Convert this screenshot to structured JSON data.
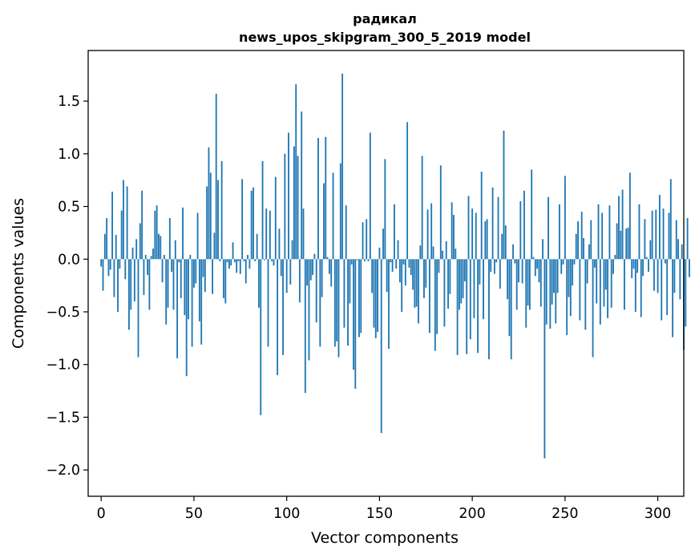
{
  "chart_data": {
    "type": "bar",
    "title": "радикал",
    "subtitle": "news_upos_skipgram_300_5_2019 model",
    "xlabel": "Vector components",
    "ylabel": "Components values",
    "xlim": [
      -7,
      314
    ],
    "ylim": [
      -2.25,
      1.98
    ],
    "xticks": [
      0,
      50,
      100,
      150,
      200,
      250,
      300
    ],
    "yticks": [
      -2.0,
      -1.5,
      -1.0,
      -0.5,
      0.0,
      0.5,
      1.0,
      1.5
    ],
    "ytick_labels": [
      "−2.0",
      "−1.5",
      "−1.0",
      "−0.5",
      "0.0",
      "0.5",
      "1.0",
      "1.5"
    ],
    "bar_color": "#1f77b4",
    "grid": false,
    "values": [
      -0.07,
      -0.3,
      0.24,
      0.39,
      -0.16,
      -0.1,
      0.64,
      -0.36,
      0.23,
      -0.5,
      -0.09,
      0.46,
      0.75,
      -0.19,
      0.69,
      -0.67,
      -0.48,
      0.11,
      -0.4,
      0.19,
      -0.93,
      0.34,
      0.65,
      -0.34,
      0.04,
      -0.15,
      -0.48,
      0.03,
      0.1,
      0.46,
      0.51,
      0.24,
      0.22,
      -0.22,
      0.04,
      -0.62,
      -0.46,
      0.39,
      -0.12,
      -0.48,
      0.18,
      -0.94,
      -0.03,
      -0.37,
      0.49,
      -0.53,
      -1.11,
      -0.57,
      0.04,
      -0.83,
      -0.27,
      -0.23,
      0.44,
      -0.59,
      -0.81,
      -0.17,
      -0.31,
      0.69,
      1.06,
      0.82,
      -0.33,
      0.25,
      1.57,
      0.75,
      -0.02,
      0.93,
      -0.37,
      -0.42,
      -0.03,
      -0.09,
      -0.06,
      0.16,
      -0.03,
      -0.13,
      -0.02,
      -0.14,
      0.76,
      -0.02,
      -0.23,
      0.04,
      -0.09,
      0.65,
      0.68,
      -0.02,
      0.24,
      -0.46,
      -1.48,
      0.93,
      -0.01,
      0.48,
      -0.83,
      0.46,
      -0.02,
      -0.06,
      0.78,
      -1.1,
      0.29,
      -0.16,
      -0.91,
      1.0,
      -0.32,
      1.2,
      -0.24,
      0.18,
      1.07,
      1.66,
      0.98,
      -0.41,
      1.4,
      0.48,
      -1.27,
      -0.25,
      -0.96,
      -0.2,
      -0.15,
      0.05,
      -0.6,
      1.15,
      -0.83,
      -0.36,
      0.72,
      1.16,
      0.02,
      -0.14,
      -0.26,
      0.82,
      -0.83,
      -0.78,
      -0.93,
      0.91,
      1.76,
      -0.65,
      0.51,
      -0.82,
      -0.42,
      -0.05,
      -1.05,
      -1.23,
      -0.01,
      -0.74,
      -0.7,
      0.35,
      -0.02,
      0.38,
      -0.02,
      1.2,
      -0.32,
      -0.65,
      -0.75,
      -0.69,
      0.11,
      -1.65,
      0.29,
      0.95,
      -0.31,
      -0.85,
      -0.03,
      -0.12,
      0.52,
      -0.09,
      0.18,
      -0.22,
      -0.5,
      -0.05,
      -0.25,
      1.3,
      -0.08,
      -0.15,
      -0.29,
      -0.46,
      -0.45,
      -0.61,
      0.13,
      0.98,
      -0.37,
      -0.27,
      0.47,
      -0.7,
      0.53,
      0.12,
      -0.87,
      -0.71,
      -0.13,
      0.89,
      0.08,
      -0.64,
      0.17,
      -0.47,
      -0.33,
      0.54,
      0.42,
      0.1,
      -0.91,
      -0.48,
      -0.42,
      -0.37,
      -0.21,
      -0.9,
      0.6,
      -0.76,
      0.48,
      -0.56,
      0.44,
      -0.89,
      -0.24,
      0.83,
      -0.57,
      0.36,
      0.38,
      -0.95,
      -0.12,
      0.68,
      -0.14,
      -0.03,
      0.59,
      -0.28,
      0.24,
      1.22,
      0.32,
      -0.38,
      -0.73,
      -0.95,
      0.14,
      -0.04,
      -0.48,
      -0.22,
      0.55,
      -0.23,
      0.65,
      -0.65,
      -0.44,
      -0.48,
      0.85,
      0.02,
      -0.16,
      -0.09,
      -0.22,
      -0.45,
      0.19,
      -1.89,
      -0.62,
      0.59,
      -0.66,
      -0.43,
      -0.32,
      -0.61,
      -0.32,
      0.52,
      -0.14,
      -0.05,
      0.79,
      -0.72,
      -0.36,
      -0.54,
      -0.25,
      -0.05,
      0.24,
      0.36,
      -0.58,
      0.45,
      0.2,
      -0.67,
      -0.23,
      0.14,
      0.37,
      -0.93,
      -0.08,
      -0.42,
      0.52,
      -0.62,
      0.44,
      -0.45,
      -0.29,
      -0.56,
      0.51,
      -0.46,
      -0.14,
      0.04,
      0.34,
      0.6,
      0.27,
      0.66,
      -0.48,
      0.29,
      0.3,
      0.82,
      -0.18,
      -0.09,
      -0.5,
      -0.13,
      0.52,
      -0.55,
      -0.16,
      0.38,
      0.02,
      -0.12,
      0.18,
      0.46,
      -0.3,
      0.47,
      -0.32,
      0.61,
      -0.58,
      0.48,
      -0.04,
      -0.53,
      0.44,
      0.76,
      -0.74,
      -0.32,
      0.37,
      0.19,
      -0.38,
      0.14,
      -0.86,
      -0.64,
      0.39,
      -0.17
    ]
  }
}
